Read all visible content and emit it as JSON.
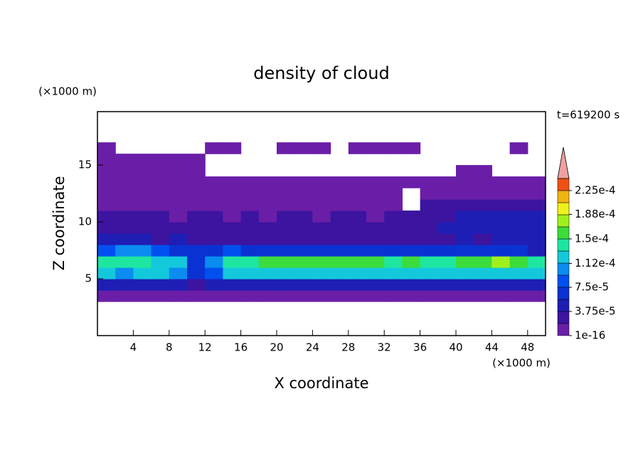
{
  "chart_data": {
    "type": "contour",
    "title": "density of cloud",
    "x_label": "X coordinate",
    "y_label": "Z coordinate",
    "x_unit": "(×1000 m)",
    "y_unit": "(×1000 m)",
    "annotation": "t=619200 s",
    "xlim": [
      0,
      50
    ],
    "ylim": [
      0,
      19.7
    ],
    "xticks": [
      4,
      8,
      12,
      16,
      20,
      24,
      28,
      32,
      36,
      40,
      44,
      48
    ],
    "yticks": [
      5,
      10,
      15
    ],
    "x": [
      0,
      2,
      4,
      6,
      8,
      10,
      12,
      14,
      16,
      18,
      20,
      22,
      24,
      26,
      28,
      30,
      32,
      34,
      36,
      38,
      40,
      42,
      44,
      46,
      48
    ],
    "z": [
      3,
      4,
      5,
      6,
      7,
      8,
      9,
      10,
      11,
      12,
      13,
      14,
      15,
      16
    ],
    "values": [
      [
        1e-05,
        1e-05,
        1e-05,
        1e-05,
        1e-05,
        1e-05,
        1e-05,
        1e-05,
        1e-05,
        1e-05,
        1e-05,
        1e-05,
        1e-05,
        1e-05,
        1e-05,
        1e-05,
        1e-05,
        1e-05,
        1e-05,
        1e-05,
        1e-05,
        1e-05,
        1e-05,
        1e-05,
        1e-05
      ],
      [
        4.5e-05,
        4e-05,
        5e-05,
        4e-05,
        4.5e-05,
        3e-05,
        4e-05,
        5e-05,
        4e-05,
        4.5e-05,
        5e-05,
        4e-05,
        4.5e-05,
        5e-05,
        4e-05,
        4.5e-05,
        5e-05,
        4e-05,
        4.5e-05,
        4e-05,
        5e-05,
        4.5e-05,
        4e-05,
        5e-05,
        4.5e-05
      ],
      [
        0.00012,
        0.00011,
        0.000115,
        0.00012,
        0.0001,
        6e-05,
        9e-05,
        0.00012,
        0.00013,
        0.000125,
        0.00013,
        0.00012,
        0.00013,
        0.000125,
        0.00012,
        0.00013,
        0.00012,
        0.000115,
        0.00012,
        0.000125,
        0.00013,
        0.00012,
        0.00013,
        0.000125,
        0.00012
      ],
      [
        0.000135,
        0.00014,
        0.000145,
        0.00013,
        0.00012,
        7e-05,
        0.00011,
        0.000135,
        0.000145,
        0.00016,
        0.000165,
        0.000155,
        0.00016,
        0.000155,
        0.00016,
        0.00015,
        0.000145,
        0.00015,
        0.00014,
        0.000145,
        0.00015,
        0.000165,
        0.00017,
        0.00016,
        0.00014
      ],
      [
        9e-05,
        0.0001,
        9.5e-05,
        8e-05,
        7e-05,
        6e-05,
        7e-05,
        8e-05,
        7e-05,
        6e-05,
        7e-05,
        6e-05,
        6.5e-05,
        7e-05,
        6e-05,
        6.5e-05,
        7e-05,
        6e-05,
        6.5e-05,
        6e-05,
        7e-05,
        6.5e-05,
        6e-05,
        6e-05,
        5e-05
      ],
      [
        4e-05,
        4.5e-05,
        4e-05,
        3.5e-05,
        4e-05,
        3e-05,
        3.5e-05,
        3e-05,
        3e-05,
        2.5e-05,
        3e-05,
        2.5e-05,
        3e-05,
        2.5e-05,
        3e-05,
        3e-05,
        3.5e-05,
        3e-05,
        3.5e-05,
        3.5e-05,
        4e-05,
        3.5e-05,
        4e-05,
        4e-05,
        4e-05
      ],
      [
        3e-05,
        3.5e-05,
        2.5e-05,
        3e-05,
        2e-05,
        2.5e-05,
        2e-05,
        2.5e-05,
        2e-05,
        2e-05,
        2.5e-05,
        2e-05,
        2e-05,
        2.5e-05,
        2e-05,
        2.5e-05,
        3e-05,
        2.5e-05,
        3e-05,
        4e-05,
        4.5e-05,
        5e-05,
        5e-05,
        5.5e-05,
        5e-05
      ],
      [
        2e-05,
        2.5e-05,
        2e-05,
        2e-05,
        1.5e-05,
        2e-05,
        2e-05,
        1.5e-05,
        2e-05,
        1.5e-05,
        2e-05,
        2e-05,
        1.5e-05,
        2e-05,
        2e-05,
        1.5e-05,
        2e-05,
        2.5e-05,
        3e-05,
        3.5e-05,
        4e-05,
        5e-05,
        5.5e-05,
        5e-05,
        4.5e-05
      ],
      [
        1e-05,
        1.5e-05,
        1e-05,
        1e-05,
        1e-05,
        1.5e-05,
        1e-05,
        1e-05,
        1e-05,
        1e-05,
        1e-05,
        1e-05,
        1e-05,
        1e-05,
        1e-05,
        1e-05,
        1e-05,
        null,
        2e-05,
        2.5e-05,
        3e-05,
        3e-05,
        3.5e-05,
        3e-05,
        3e-05
      ],
      [
        1e-05,
        1e-05,
        1e-05,
        1e-05,
        1e-05,
        1e-05,
        1e-05,
        1e-05,
        1e-05,
        1e-05,
        1e-05,
        1e-05,
        1e-05,
        1e-05,
        1e-05,
        1e-05,
        1e-05,
        null,
        1e-05,
        1e-05,
        1e-05,
        1e-05,
        1e-05,
        1e-05,
        1e-05
      ],
      [
        1e-05,
        1e-05,
        1e-05,
        1e-05,
        1e-05,
        1e-05,
        1e-05,
        1e-05,
        1e-05,
        1e-05,
        1e-05,
        1e-05,
        1e-05,
        1e-05,
        1e-05,
        1e-05,
        1e-05,
        1e-05,
        1e-05,
        1e-05,
        1e-05,
        1e-05,
        1e-05,
        1e-05,
        1e-05
      ],
      [
        1e-05,
        1e-05,
        1e-05,
        1e-05,
        1e-05,
        1e-05,
        null,
        null,
        null,
        null,
        null,
        null,
        null,
        null,
        null,
        null,
        null,
        null,
        null,
        null,
        1e-05,
        1e-05,
        null,
        null,
        null
      ],
      [
        1e-05,
        1e-05,
        1e-05,
        1e-05,
        1e-05,
        1e-05,
        null,
        null,
        null,
        null,
        null,
        null,
        null,
        null,
        null,
        null,
        null,
        null,
        null,
        null,
        null,
        null,
        null,
        null,
        null
      ],
      [
        1e-05,
        null,
        null,
        null,
        null,
        null,
        1e-05,
        1e-05,
        null,
        null,
        1e-05,
        1e-05,
        1e-05,
        null,
        1e-05,
        1e-05,
        1e-05,
        1e-05,
        null,
        null,
        null,
        null,
        null,
        1e-05,
        null
      ]
    ],
    "levels": [
      1e-16,
      1.875e-05,
      3.75e-05,
      5.625e-05,
      7.5e-05,
      9.375e-05,
      0.0001125,
      0.00013125,
      0.00015,
      0.00016875,
      0.0001875,
      0.00020625,
      0.000225,
      0.00024375
    ],
    "colors": [
      "#6a1ea8",
      "#3c14a0",
      "#1e1eb4",
      "#0a32d2",
      "#0050f0",
      "#0a8cf0",
      "#14c8dc",
      "#1ee6a0",
      "#3cdc3c",
      "#a0f01e",
      "#f0f01e",
      "#f0b414",
      "#f05014"
    ],
    "extend_color": "#f0a0a0",
    "colorbar_ticks": [
      {
        "value": 1e-16,
        "label": "1e-16"
      },
      {
        "value": 3.75e-05,
        "label": "3.75e-5"
      },
      {
        "value": 7.5e-05,
        "label": "7.5e-5"
      },
      {
        "value": 0.000112,
        "label": "1.12e-4"
      },
      {
        "value": 0.00015,
        "label": "1.5e-4"
      },
      {
        "value": 0.000188,
        "label": "1.88e-4"
      },
      {
        "value": 0.000225,
        "label": "2.25e-4"
      }
    ]
  }
}
